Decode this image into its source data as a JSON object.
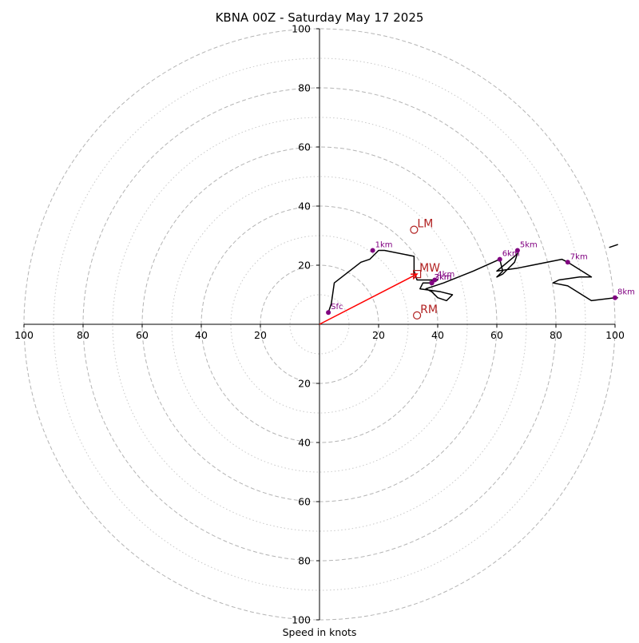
{
  "chart_data": {
    "type": "scatter",
    "title": "KBNA 00Z - Saturday May 17 2025",
    "xlabel": "Speed in knots",
    "ylabel": "",
    "xlim": [
      -100,
      100
    ],
    "ylim": [
      -100,
      100
    ],
    "rings": {
      "major": [
        20,
        40,
        60,
        80,
        100
      ],
      "minor": [
        10,
        30,
        50,
        70,
        90
      ],
      "major_style": "dashed",
      "minor_style": "dotted"
    },
    "tick_labels": {
      "x_left": [
        "100",
        "80",
        "60",
        "40",
        "20"
      ],
      "x_right": [
        "20",
        "40",
        "60",
        "80",
        "100"
      ],
      "y_top": [
        "20",
        "40",
        "60",
        "80",
        "100"
      ],
      "y_bottom": [
        "20",
        "40",
        "60",
        "80",
        "100"
      ]
    },
    "hodograph": {
      "color": "#000000",
      "points": [
        [
          3,
          4
        ],
        [
          4,
          7
        ],
        [
          5,
          14
        ],
        [
          14,
          21
        ],
        [
          17,
          22
        ],
        [
          20,
          25
        ],
        [
          22,
          25
        ],
        [
          32,
          23
        ],
        [
          32,
          18
        ],
        [
          33,
          15
        ],
        [
          40,
          15
        ],
        [
          38,
          14
        ],
        [
          35,
          14
        ],
        [
          34,
          12
        ],
        [
          41,
          11
        ],
        [
          45,
          10
        ],
        [
          43,
          8
        ],
        [
          40,
          9
        ],
        [
          38,
          11
        ],
        [
          36,
          12
        ],
        [
          42,
          14
        ],
        [
          52,
          18
        ],
        [
          61,
          22
        ],
        [
          62,
          18
        ],
        [
          61,
          17
        ],
        [
          60,
          16
        ],
        [
          62,
          17
        ],
        [
          66,
          21
        ],
        [
          67,
          24
        ],
        [
          67,
          24
        ],
        [
          66,
          23
        ],
        [
          60,
          18
        ],
        [
          67,
          19
        ],
        [
          72,
          20
        ],
        [
          82,
          22
        ],
        [
          84,
          21
        ],
        [
          92,
          16
        ],
        [
          88,
          16
        ],
        [
          81,
          15
        ],
        [
          79,
          14
        ],
        [
          84,
          13
        ],
        [
          92,
          8
        ],
        [
          100,
          9
        ],
        [
          101,
          9
        ]
      ],
      "extra_segment": [
        [
          98,
          26
        ],
        [
          101,
          27
        ]
      ]
    },
    "height_markers": {
      "color": "#800080",
      "points": [
        {
          "label": "Sfc",
          "x": 3,
          "y": 4
        },
        {
          "label": "1km",
          "x": 18,
          "y": 25
        },
        {
          "label": "3km",
          "x": 38,
          "y": 14
        },
        {
          "label": "2km",
          "x": 38,
          "y": 14
        },
        {
          "label": "4km",
          "x": 39,
          "y": 15
        },
        {
          "label": "6km",
          "x": 61,
          "y": 22
        },
        {
          "label": "5km",
          "x": 67,
          "y": 25
        },
        {
          "label": "7km",
          "x": 84,
          "y": 21
        },
        {
          "label": "8km",
          "x": 100,
          "y": 9
        }
      ]
    },
    "storm_motion": {
      "color": "#b22222",
      "right_mover": {
        "label": "RM",
        "x": 33,
        "y": 3
      },
      "left_mover": {
        "label": "LM",
        "x": 32,
        "y": 32
      },
      "mean_wind": {
        "label": "MW",
        "x": 33,
        "y": 17
      }
    },
    "bunkers_vector": {
      "color": "#ff0000",
      "from": [
        0,
        0
      ],
      "to": [
        33,
        17
      ]
    }
  }
}
